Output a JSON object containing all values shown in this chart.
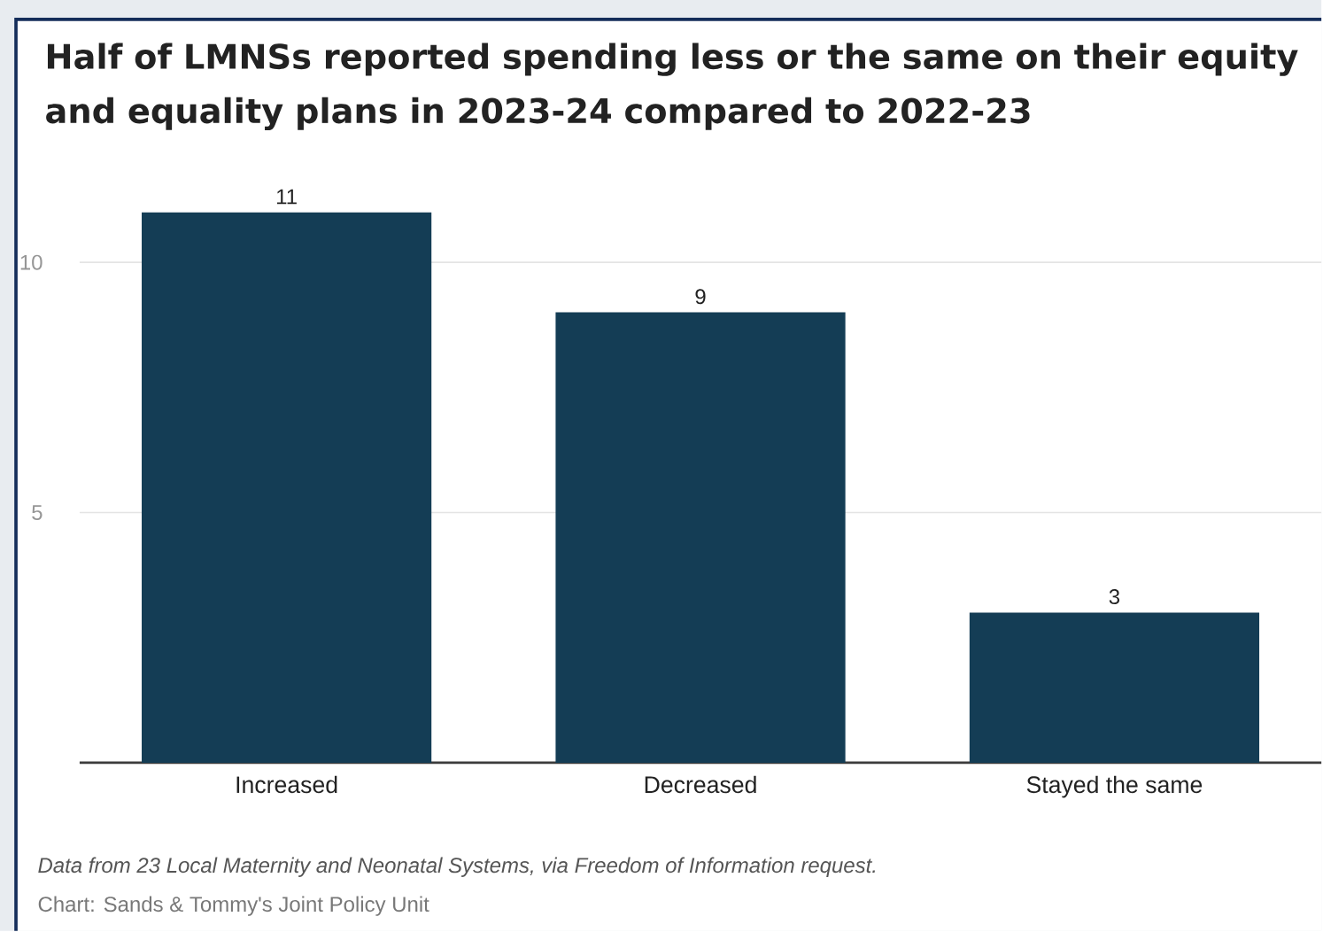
{
  "chart_data": {
    "type": "bar",
    "title": "Half of LMNSs reported spending less or the same on their equity and equality plans in 2023-24 compared to 2022-23",
    "categories": [
      "Increased",
      "Decreased",
      "Stayed the same"
    ],
    "values": [
      11,
      9,
      3
    ],
    "color": "#143d55",
    "ylim": [
      0,
      11
    ],
    "yticks": [
      5,
      10
    ],
    "grid": "y",
    "data_labels": true,
    "annotations": [
      "*Data from 23 Local Maternity and Neonatal Systems, via Freedom of Information request.*",
      "Chart: Sands & Tommy's Joint Policy Unit"
    ]
  }
}
